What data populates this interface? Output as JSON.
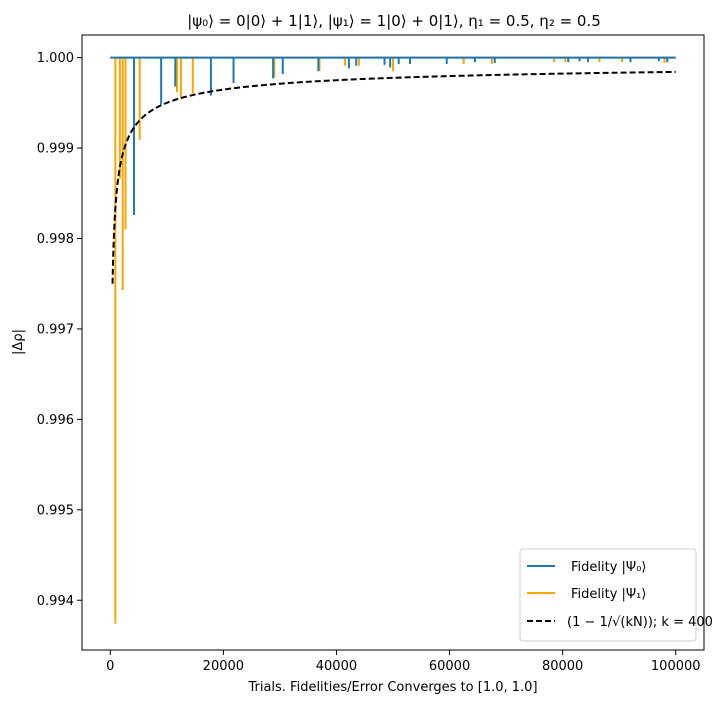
{
  "chart_data": {
    "type": "line",
    "title": "|ψ₀⟩ = 0|0⟩ + 1|1⟩, |ψ₁⟩ = 1|0⟩ + 0|1⟩, η₁ = 0.5, η₂ = 0.5",
    "xlabel": "Trials. Fidelities/Error Converges to [1.0, 1.0]",
    "ylabel": "|Δρ|",
    "xlim": [
      -5000,
      105000
    ],
    "ylim": [
      0.99345,
      1.00025
    ],
    "xticks": [
      0,
      20000,
      40000,
      60000,
      80000,
      100000
    ],
    "xtick_labels": [
      "0",
      "20000",
      "40000",
      "60000",
      "80000",
      "100000"
    ],
    "yticks": [
      0.994,
      0.995,
      0.996,
      0.997,
      0.998,
      0.999,
      1.0
    ],
    "ytick_labels": [
      "0.994",
      "0.995",
      "0.996",
      "0.997",
      "0.998",
      "0.999",
      "1.000"
    ],
    "legend_position": "lower-right",
    "series": [
      {
        "name": "Fidelity |Ψ₀⟩",
        "color": "#1f77b4",
        "baseline": 1.0,
        "x_range": [
          0,
          100000
        ],
        "dips": [
          [
            4200,
            0.99826
          ],
          [
            9000,
            0.99948
          ],
          [
            11500,
            0.99968
          ],
          [
            17800,
            0.99958
          ],
          [
            21800,
            0.99972
          ],
          [
            28800,
            0.99977
          ],
          [
            30500,
            0.99982
          ],
          [
            36800,
            0.99985
          ],
          [
            42200,
            0.99988
          ],
          [
            43500,
            0.99991
          ],
          [
            48500,
            0.99992
          ],
          [
            49500,
            0.99989
          ],
          [
            51000,
            0.99993
          ],
          [
            53000,
            0.99993
          ],
          [
            59500,
            0.99993
          ],
          [
            64500,
            0.99995
          ],
          [
            68000,
            0.99994
          ],
          [
            81000,
            0.99995
          ],
          [
            83000,
            0.99996
          ],
          [
            84500,
            0.99995
          ],
          [
            92000,
            0.99995
          ],
          [
            97000,
            0.99996
          ],
          [
            98500,
            0.99995
          ]
        ]
      },
      {
        "name": "Fidelity |Ψ₁⟩",
        "color": "#ffa500",
        "baseline": 1.0,
        "x_range": [
          0,
          100000
        ],
        "dips": [
          [
            900,
            0.99374
          ],
          [
            1700,
            0.99866
          ],
          [
            2200,
            0.99743
          ],
          [
            2700,
            0.9981
          ],
          [
            5200,
            0.99909
          ],
          [
            11800,
            0.99962
          ],
          [
            12500,
            0.99955
          ],
          [
            14600,
            0.9996
          ],
          [
            29000,
            0.99978
          ],
          [
            37000,
            0.99985
          ],
          [
            41500,
            0.99991
          ],
          [
            44000,
            0.99991
          ],
          [
            50000,
            0.99985
          ],
          [
            62500,
            0.99993
          ],
          [
            67500,
            0.99993
          ],
          [
            78500,
            0.99995
          ],
          [
            80500,
            0.99995
          ],
          [
            86500,
            0.99995
          ],
          [
            90500,
            0.99995
          ],
          [
            98000,
            0.99994
          ]
        ]
      },
      {
        "name": "(1 − 1/√(kN)); k = 400",
        "color": "#000000",
        "dashed": true,
        "formula": "1 - 1/sqrt(400*N)",
        "x_range": [
          400,
          100000
        ]
      }
    ]
  }
}
